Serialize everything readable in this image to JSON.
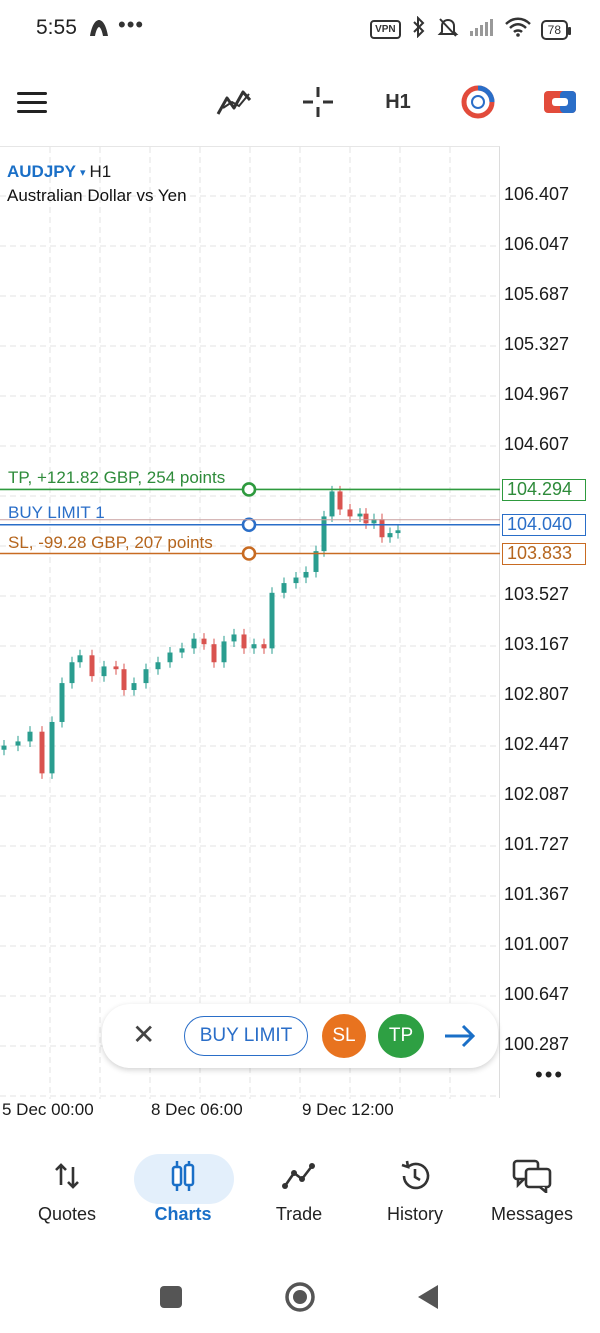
{
  "status_bar": {
    "time": "5:55",
    "more": "•••",
    "vpn": "VPN",
    "battery": "78"
  },
  "toolbar": {
    "timeframe": "H1"
  },
  "chart": {
    "symbol": "AUDJPY",
    "caret": "▾",
    "timeframe": "H1",
    "description": "Australian Dollar vs Yen",
    "price_levels": [
      "106.407",
      "106.047",
      "105.687",
      "105.327",
      "104.967",
      "104.607",
      "103.527",
      "103.167",
      "102.807",
      "102.447",
      "102.087",
      "101.727",
      "101.367",
      "101.007",
      "100.647",
      "100.287"
    ],
    "time_labels": [
      "5 Dec 00:00",
      "8 Dec 06:00",
      "9 Dec 12:00"
    ],
    "tp_line": {
      "label": "TP, +121.82 GBP, 254 points",
      "price": "104.294",
      "color": "#2e9a3e"
    },
    "buy_limit_line": {
      "label": "BUY LIMIT 1",
      "price": "104.040",
      "color": "#2a6ec8"
    },
    "sl_line": {
      "label": "SL, -99.28 GBP, 207 points",
      "price": "103.833",
      "color": "#c86b22"
    },
    "up_color": "#2a9d8f",
    "down_color": "#d9534f"
  },
  "order_panel": {
    "close": "✕",
    "buy_limit": "BUY LIMIT",
    "sl": "SL",
    "tp": "TP"
  },
  "more_menu": "•••",
  "bottom_nav": {
    "items": [
      {
        "label": "Quotes"
      },
      {
        "label": "Charts"
      },
      {
        "label": "Trade"
      },
      {
        "label": "History"
      },
      {
        "label": "Messages"
      }
    ]
  }
}
